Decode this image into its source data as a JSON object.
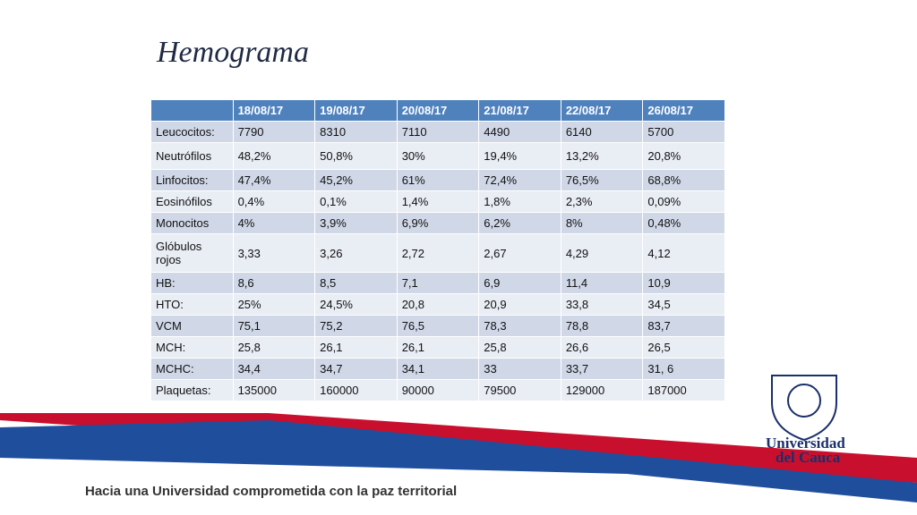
{
  "title": "Hemograma",
  "table": {
    "header": [
      "18/08/17",
      "19/08/17",
      "20/08/17",
      "21/08/17",
      "22/08/17",
      "26/08/17"
    ],
    "rows": [
      [
        "Leucocitos:",
        "7790",
        "8310",
        "7110",
        "4490",
        "6140",
        "5700"
      ],
      [
        "Neutrófilos",
        "48,2%",
        "50,8%",
        "30%",
        "19,4%",
        "13,2%",
        "20,8%"
      ],
      [
        "Linfocitos:",
        "47,4%",
        "45,2%",
        "61%",
        "72,4%",
        "76,5%",
        "68,8%"
      ],
      [
        "Eosinófilos",
        "0,4%",
        "0,1%",
        "1,4%",
        "1,8%",
        "2,3%",
        "0,09%"
      ],
      [
        "Monocitos",
        "4%",
        "3,9%",
        "6,9%",
        "6,2%",
        "8%",
        "0,48%"
      ],
      [
        "Glóbulos rojos",
        "3,33",
        "3,26",
        "2,72",
        "2,67",
        "4,29",
        "4,12"
      ],
      [
        "HB:",
        "8,6",
        "8,5",
        "7,1",
        "6,9",
        "11,4",
        "10,9"
      ],
      [
        "HTO:",
        "25%",
        "24,5%",
        "20,8",
        "20,9",
        "33,8",
        "34,5"
      ],
      [
        "VCM",
        "75,1",
        "75,2",
        "76,5",
        "78,3",
        "78,8",
        "83,7"
      ],
      [
        "MCH:",
        "25,8",
        "26,1",
        "26,1",
        "25,8",
        "26,6",
        "26,5"
      ],
      [
        "MCHC:",
        "34,4",
        "34,7",
        "34,1",
        "33",
        "33,7",
        "31, 6"
      ],
      [
        "Plaquetas:",
        "135000",
        "160000",
        "90000",
        "79500",
        "129000",
        "187000"
      ]
    ]
  },
  "logo": {
    "line1": "Universidad",
    "line2": "del Cauca"
  },
  "footer": "Hacia una Universidad comprometida con la paz territorial"
}
